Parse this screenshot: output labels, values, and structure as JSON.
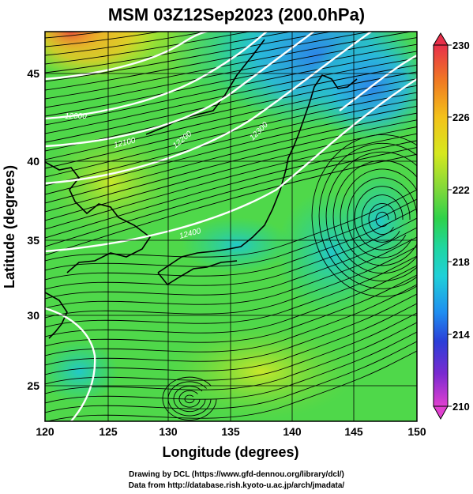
{
  "title": "MSM 03Z12Sep2023 (200.0hPa)",
  "xlabel": "Longitude (degrees)",
  "ylabel": "Latitude  (degrees)",
  "x_ticks": [
    "120",
    "125",
    "130",
    "135",
    "140",
    "145",
    "150"
  ],
  "y_ticks": [
    "25",
    "30",
    "35",
    "40",
    "45"
  ],
  "colorbar": {
    "ticks": [
      "230",
      "226",
      "222",
      "218",
      "214",
      "210"
    ],
    "colors": [
      "#e8304a",
      "#f07a22",
      "#f3c21a",
      "#d6e81e",
      "#7fd83a",
      "#2ed24a",
      "#1fd6a0",
      "#1fd0d8",
      "#1f8ef0",
      "#2a3ed8",
      "#7a2ad0",
      "#e040d0"
    ]
  },
  "contours": [
    "12000",
    "12100",
    "12200",
    "12300",
    "12400"
  ],
  "credit_line1": "Drawing by DCL (https://www.gfd-dennou.org/library/dcl/)",
  "credit_line2": "Data from http://database.rish.kyoto-u.ac.jp/arch/jmadata/"
}
